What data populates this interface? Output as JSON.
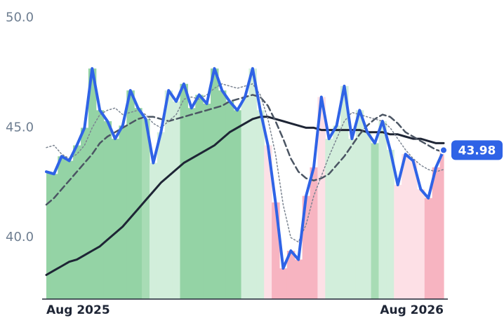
{
  "chart_data": {
    "type": "line",
    "categories": [
      "Aug 2025",
      null,
      null,
      null,
      null,
      null,
      null,
      null,
      null,
      null,
      null,
      null,
      null,
      null,
      null,
      null,
      null,
      null,
      null,
      null,
      null,
      null,
      null,
      null,
      null,
      null,
      null,
      null,
      null,
      null,
      null,
      null,
      null,
      null,
      null,
      null,
      null,
      null,
      null,
      null,
      null,
      null,
      null,
      null,
      null,
      null,
      null,
      null,
      null,
      null,
      null,
      null,
      "Aug 2026"
    ],
    "series": [
      {
        "color": "#2f63e6",
        "values": [
          43.0,
          42.9,
          43.7,
          43.5,
          44.2,
          45.0,
          47.7,
          45.8,
          45.3,
          44.5,
          45.1,
          46.7,
          45.9,
          45.4,
          43.4,
          44.8,
          46.7,
          46.2,
          47.0,
          45.9,
          46.5,
          46.1,
          47.7,
          46.7,
          46.2,
          45.8,
          46.4,
          47.7,
          45.8,
          44.2,
          41.6,
          38.6,
          39.4,
          39.0,
          41.9,
          43.2,
          46.4,
          44.5,
          45.1,
          46.9,
          44.5,
          45.8,
          44.8,
          44.3,
          45.3,
          44.0,
          42.4,
          43.8,
          43.5,
          42.2,
          41.8,
          43.2,
          43.98
        ]
      },
      {
        "color": "#7b8491",
        "values": [
          44.1,
          44.2,
          43.8,
          43.6,
          43.8,
          44.2,
          45.0,
          45.6,
          45.8,
          45.9,
          45.6,
          45.7,
          45.8,
          45.6,
          45.2,
          45.0,
          45.3,
          45.6,
          46.3,
          46.4,
          46.3,
          46.5,
          46.8,
          47.0,
          46.9,
          46.8,
          46.9,
          47.0,
          46.5,
          45.4,
          43.8,
          41.5,
          40.0,
          39.8,
          40.6,
          41.9,
          42.8,
          43.7,
          44.5,
          45.3,
          45.7,
          45.6,
          45.5,
          45.4,
          45.3,
          45.0,
          44.5,
          44.0,
          43.6,
          43.3,
          43.1,
          43.0,
          43.1
        ]
      },
      {
        "color": "#4b5563",
        "values": [
          41.5,
          41.8,
          42.2,
          42.6,
          43.0,
          43.4,
          43.8,
          44.3,
          44.6,
          44.8,
          45.0,
          45.2,
          45.4,
          45.5,
          45.5,
          45.4,
          45.3,
          45.4,
          45.5,
          45.6,
          45.7,
          45.8,
          45.9,
          46.0,
          46.2,
          46.3,
          46.4,
          46.5,
          46.4,
          46.0,
          45.3,
          44.5,
          43.6,
          43.0,
          42.7,
          42.6,
          42.7,
          42.9,
          43.3,
          43.7,
          44.2,
          44.7,
          45.1,
          45.4,
          45.6,
          45.5,
          45.2,
          44.8,
          44.6,
          44.4,
          44.2,
          44.0,
          43.9
        ]
      },
      {
        "color": "#1e2535",
        "values": [
          38.3,
          38.5,
          38.7,
          38.9,
          39.0,
          39.2,
          39.4,
          39.6,
          39.9,
          40.2,
          40.5,
          40.9,
          41.3,
          41.7,
          42.1,
          42.5,
          42.8,
          43.1,
          43.4,
          43.6,
          43.8,
          44.0,
          44.2,
          44.5,
          44.8,
          45.0,
          45.2,
          45.4,
          45.5,
          45.5,
          45.4,
          45.3,
          45.2,
          45.1,
          45.0,
          45.0,
          44.9,
          44.9,
          44.9,
          44.9,
          44.9,
          44.9,
          44.8,
          44.8,
          44.8,
          44.7,
          44.7,
          44.6,
          44.5,
          44.5,
          44.4,
          44.3,
          44.3
        ]
      }
    ],
    "bar_colors": [
      "#94d3a5",
      "#94d3a5",
      "#94d3a5",
      "#94d3a5",
      "#94d3a5",
      "#94d3a5",
      "#94d3a5",
      "#94d3a5",
      "#94d3a5",
      "#94d3a5",
      "#94d3a5",
      "#94d3a5",
      "#94d3a5",
      "#a8dcb5",
      "#d2eedb",
      "#d2eedb",
      "#d2eedb",
      "#d2eedb",
      "#94d3a5",
      "#94d3a5",
      "#94d3a5",
      "#94d3a5",
      "#94d3a5",
      "#94d3a5",
      "#94d3a5",
      "#94d3a5",
      "#d2eedb",
      "#d2eedb",
      "#d2eedb",
      "#fde0e6",
      "#f7b4c1",
      "#f7b4c1",
      "#f7b4c1",
      "#f7b4c1",
      "#f7b4c1",
      "#f7b4c1",
      "#fde0e6",
      "#d2eedb",
      "#d2eedb",
      "#d2eedb",
      "#d2eedb",
      "#d2eedb",
      "#d2eedb",
      "#a8dcb5",
      "#d2eedb",
      "#d2eedb",
      "#fde0e6",
      "#fde0e6",
      "#fde0e6",
      "#fde0e6",
      "#f7b4c1",
      "#f7b4c1",
      "#f7b4c1"
    ],
    "ylim": [
      37.2,
      50.5
    ],
    "yticks": [
      {
        "value": 40,
        "label": "40.0"
      },
      {
        "value": 45,
        "label": "45.0"
      },
      {
        "value": 50,
        "label": "50.0"
      }
    ]
  }
}
